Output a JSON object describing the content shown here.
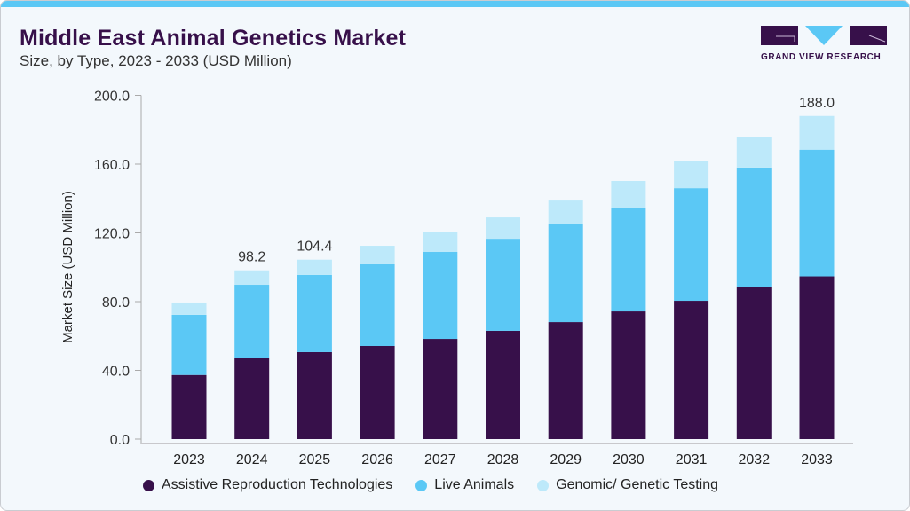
{
  "header": {
    "title": "Middle East Animal Genetics Market",
    "subtitle": "Size, by Type, 2023 - 2033 (USD Million)"
  },
  "logo": {
    "text": "GRAND VIEW RESEARCH"
  },
  "chart_data": {
    "type": "bar",
    "stacked": true,
    "title": "Middle East Animal Genetics Market",
    "subtitle": "Size, by Type, 2023 - 2033 (USD Million)",
    "xlabel": "",
    "ylabel": "Market Size (USD Million)",
    "ylim": [
      0,
      200
    ],
    "yticks": [
      "0.0",
      "40.0",
      "80.0",
      "120.0",
      "160.0",
      "200.0"
    ],
    "grid": false,
    "legend_position": "bottom",
    "categories": [
      "2023",
      "2024",
      "2025",
      "2026",
      "2027",
      "2028",
      "2029",
      "2030",
      "2031",
      "2032",
      "2033"
    ],
    "series": [
      {
        "name": "Assistive Reproduction Technologies",
        "color": "#37104a",
        "values": [
          37.3,
          47.1,
          50.6,
          54.2,
          58.3,
          63.0,
          68.1,
          74.3,
          80.5,
          88.3,
          94.7
        ]
      },
      {
        "name": "Live Animals",
        "color": "#5bc8f5",
        "values": [
          35.0,
          42.7,
          44.9,
          47.5,
          50.6,
          53.6,
          57.3,
          60.4,
          65.5,
          69.7,
          73.7
        ]
      },
      {
        "name": "Genomic/ Genetic Testing",
        "color": "#bde9fa",
        "values": [
          7.2,
          8.4,
          8.9,
          10.8,
          11.4,
          12.4,
          13.4,
          15.5,
          16.0,
          18.0,
          19.6
        ]
      }
    ],
    "data_labels": {
      "2024": "98.2",
      "2025": "104.4",
      "2033": "188.0"
    }
  },
  "colors": {
    "accent": "#5bc8f5",
    "brand": "#37104a",
    "background": "#f3f8fc"
  }
}
